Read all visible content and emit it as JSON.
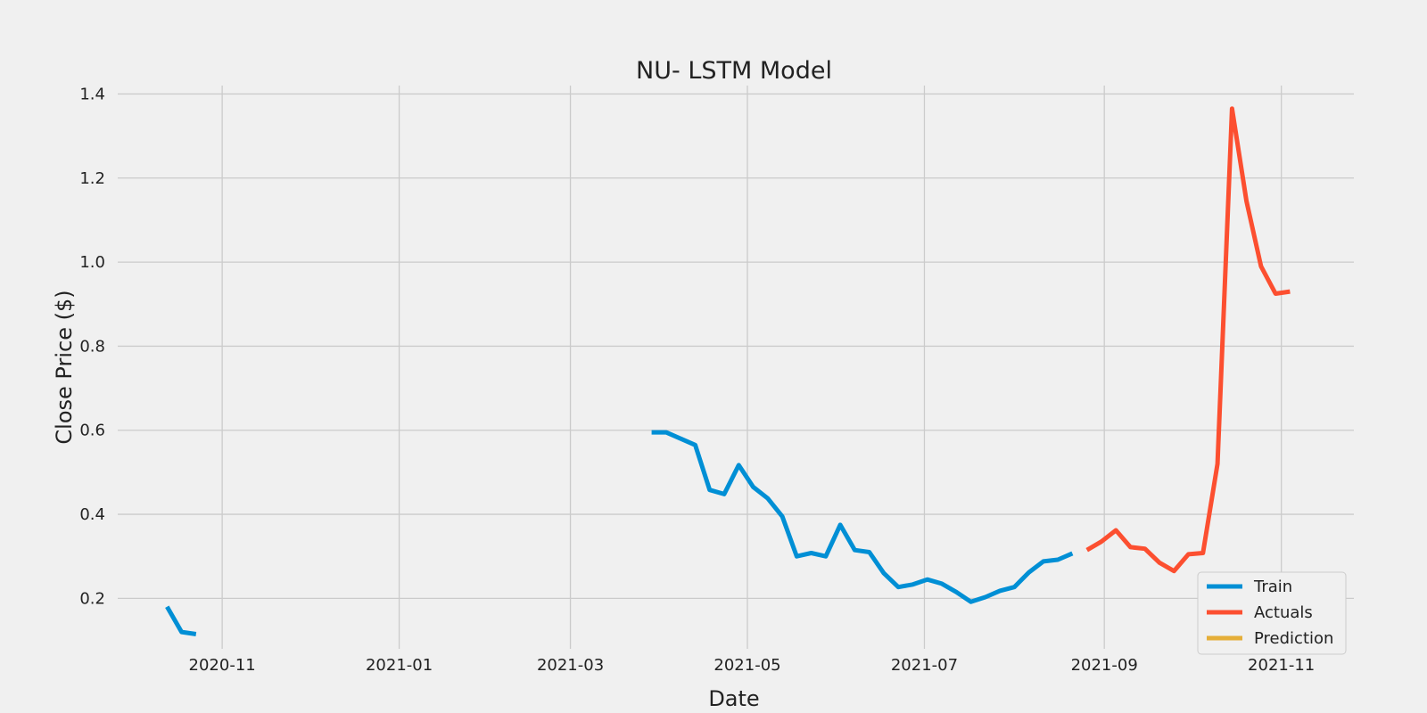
{
  "chart_data": {
    "type": "line",
    "title": "NU- LSTM Model",
    "xlabel": "Date",
    "ylabel": "Close Price ($)",
    "xlim": [
      "2020-09-26",
      "2021-11-26"
    ],
    "ylim": [
      0.08,
      1.42
    ],
    "x_ticks": [
      "2020-11-01",
      "2021-01-01",
      "2021-03-01",
      "2021-05-01",
      "2021-07-01",
      "2021-09-01",
      "2021-11-01"
    ],
    "x_tick_labels": [
      "2020-11",
      "2021-01",
      "2021-03",
      "2021-05",
      "2021-07",
      "2021-09",
      "2021-11"
    ],
    "y_ticks": [
      0.2,
      0.4,
      0.6,
      0.8,
      1.0,
      1.2,
      1.4
    ],
    "y_tick_labels": [
      "0.2",
      "0.4",
      "0.6",
      "0.8",
      "1.0",
      "1.2",
      "1.4"
    ],
    "grid": true,
    "legend_position": "bottom-right",
    "series": [
      {
        "name": "Train",
        "color": "#008fd5",
        "segments": [
          [
            {
              "x": "2020-10-13",
              "y": 0.18
            },
            {
              "x": "2020-10-18",
              "y": 0.12
            },
            {
              "x": "2020-10-23",
              "y": 0.115
            }
          ],
          [
            {
              "x": "2021-03-29",
              "y": 0.595
            },
            {
              "x": "2021-04-03",
              "y": 0.595
            },
            {
              "x": "2021-04-08",
              "y": 0.58
            },
            {
              "x": "2021-04-13",
              "y": 0.565
            },
            {
              "x": "2021-04-18",
              "y": 0.458
            },
            {
              "x": "2021-04-23",
              "y": 0.448
            },
            {
              "x": "2021-04-28",
              "y": 0.517
            },
            {
              "x": "2021-05-03",
              "y": 0.465
            },
            {
              "x": "2021-05-08",
              "y": 0.438
            },
            {
              "x": "2021-05-13",
              "y": 0.395
            },
            {
              "x": "2021-05-18",
              "y": 0.3
            },
            {
              "x": "2021-05-23",
              "y": 0.308
            },
            {
              "x": "2021-05-28",
              "y": 0.3
            },
            {
              "x": "2021-06-02",
              "y": 0.375
            },
            {
              "x": "2021-06-07",
              "y": 0.315
            },
            {
              "x": "2021-06-12",
              "y": 0.31
            },
            {
              "x": "2021-06-17",
              "y": 0.26
            },
            {
              "x": "2021-06-22",
              "y": 0.227
            },
            {
              "x": "2021-06-27",
              "y": 0.233
            },
            {
              "x": "2021-07-02",
              "y": 0.245
            },
            {
              "x": "2021-07-07",
              "y": 0.235
            },
            {
              "x": "2021-07-12",
              "y": 0.215
            },
            {
              "x": "2021-07-17",
              "y": 0.192
            },
            {
              "x": "2021-07-22",
              "y": 0.203
            },
            {
              "x": "2021-07-27",
              "y": 0.218
            },
            {
              "x": "2021-08-01",
              "y": 0.227
            },
            {
              "x": "2021-08-06",
              "y": 0.262
            },
            {
              "x": "2021-08-11",
              "y": 0.288
            },
            {
              "x": "2021-08-16",
              "y": 0.292
            },
            {
              "x": "2021-08-21",
              "y": 0.307
            }
          ]
        ]
      },
      {
        "name": "Actuals",
        "color": "#fc4f30",
        "segments": [
          [
            {
              "x": "2021-08-26",
              "y": 0.315
            },
            {
              "x": "2021-08-31",
              "y": 0.335
            },
            {
              "x": "2021-09-05",
              "y": 0.362
            },
            {
              "x": "2021-09-10",
              "y": 0.322
            },
            {
              "x": "2021-09-15",
              "y": 0.318
            },
            {
              "x": "2021-09-20",
              "y": 0.285
            },
            {
              "x": "2021-09-25",
              "y": 0.265
            },
            {
              "x": "2021-09-30",
              "y": 0.305
            },
            {
              "x": "2021-10-05",
              "y": 0.308
            },
            {
              "x": "2021-10-10",
              "y": 0.52
            },
            {
              "x": "2021-10-15",
              "y": 1.365
            },
            {
              "x": "2021-10-20",
              "y": 1.145
            },
            {
              "x": "2021-10-25",
              "y": 0.99
            },
            {
              "x": "2021-10-30",
              "y": 0.925
            },
            {
              "x": "2021-11-04",
              "y": 0.93
            }
          ]
        ]
      },
      {
        "name": "Prediction",
        "color": "#e5ae38",
        "segments": []
      }
    ]
  }
}
